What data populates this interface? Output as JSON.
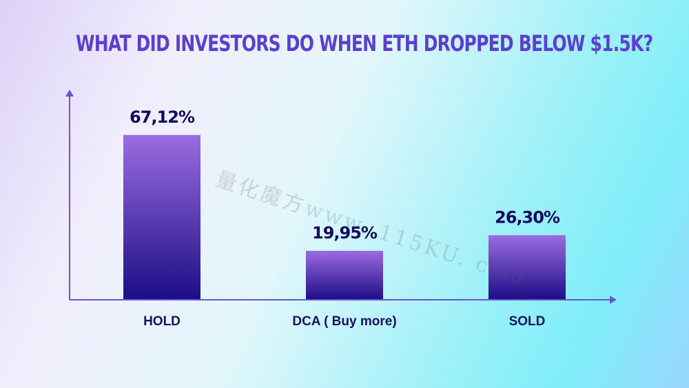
{
  "chart_data": {
    "type": "bar",
    "title": "WHAT DID INVESTORS DO WHEN ETH DROPPED BELOW $1.5K?",
    "categories": [
      "HOLD",
      "DCA ( Buy more)",
      "SOLD"
    ],
    "values": [
      67.12,
      19.95,
      26.3
    ],
    "data_labels": [
      "67,12%",
      "19,95%",
      "26,30%"
    ],
    "ylim": [
      0,
      80
    ],
    "grid": false,
    "legend": "none",
    "colors": {
      "bar_top": "#9b6ce0",
      "bar_bottom": "#1c0d86",
      "axis": "#6a55cc",
      "title": "#5b3fd0"
    }
  },
  "watermark": "量化魔方www. 115KU. com"
}
